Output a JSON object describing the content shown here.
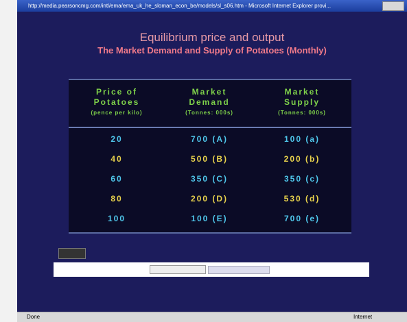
{
  "window": {
    "title": "http://media.pearsoncmg.com/intl/ema/ema_uk_he_sloman_econ_be/models/sl_s06.htm - Microsoft Internet Explorer provi...",
    "status": "Done",
    "zone": "Internet"
  },
  "header": {
    "title": "Equilibrium price and output",
    "subtitle": "The Market Demand and Supply of Potatoes (Monthly)"
  },
  "table": {
    "columns": [
      {
        "lines": [
          "Price of",
          "Potatoes"
        ],
        "unit": "(pence per kilo)"
      },
      {
        "lines": [
          "Market",
          "Demand"
        ],
        "unit": "(Tonnes: 000s)"
      },
      {
        "lines": [
          "Market",
          "Supply"
        ],
        "unit": "(Tonnes: 000s)"
      }
    ],
    "rows": [
      [
        20,
        "700 (A)",
        "100 (a)"
      ],
      [
        40,
        "500 (B)",
        "200 (b)"
      ],
      [
        60,
        "350 (C)",
        "350 (c)"
      ],
      [
        80,
        "200 (D)",
        "530 (d)"
      ],
      [
        100,
        "100 (E)",
        "700 (e)"
      ]
    ]
  }
}
